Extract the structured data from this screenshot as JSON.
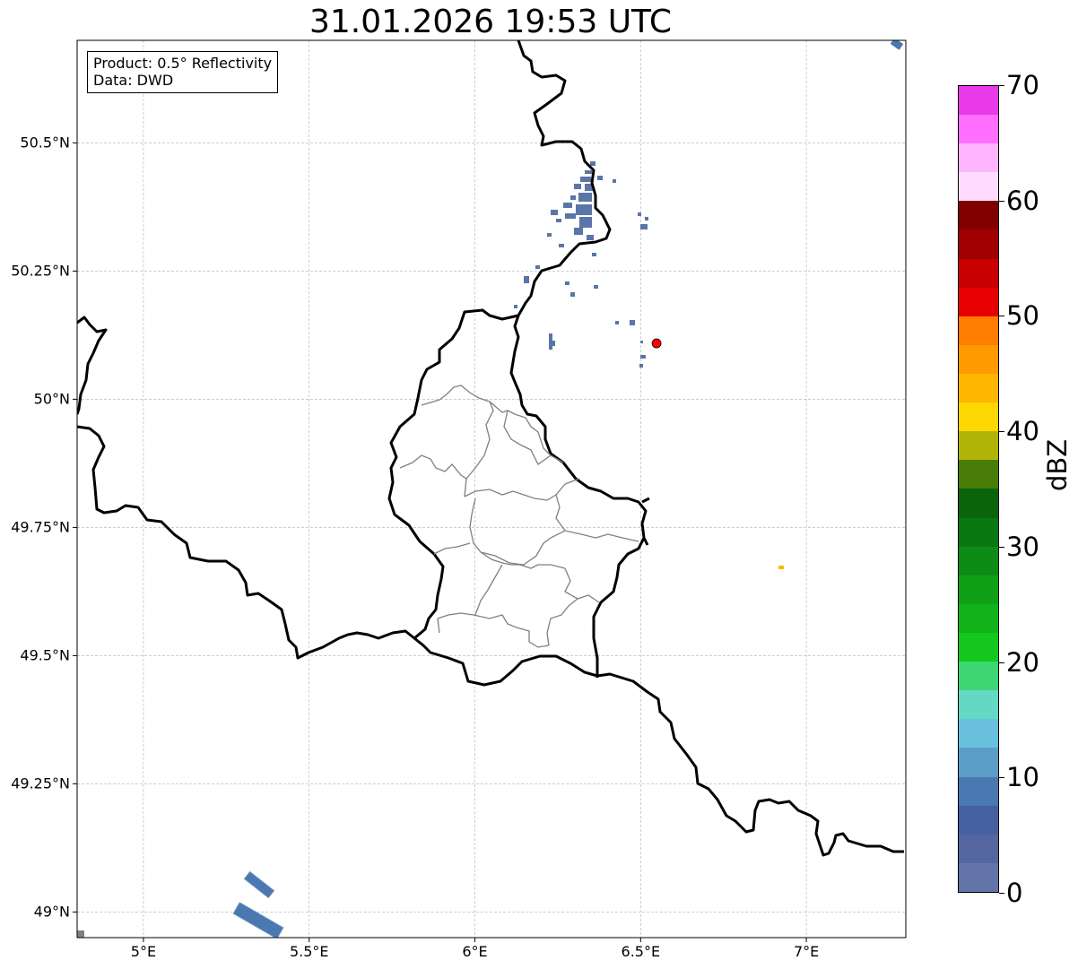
{
  "title": "31.01.2026 19:53 UTC",
  "info": {
    "product_line": "Product: 0.5° Reflectivity",
    "data_line": "Data: DWD"
  },
  "x_ticks": [
    {
      "label": "5°E",
      "lon": 5.0
    },
    {
      "label": "5.5°E",
      "lon": 5.5
    },
    {
      "label": "6°E",
      "lon": 6.0
    },
    {
      "label": "6.5°E",
      "lon": 6.5
    },
    {
      "label": "7°E",
      "lon": 7.0
    }
  ],
  "y_ticks": [
    {
      "label": "50.5°N",
      "lat": 50.5
    },
    {
      "label": "50.25°N",
      "lat": 50.25
    },
    {
      "label": "50°N",
      "lat": 50.0
    },
    {
      "label": "49.75°N",
      "lat": 49.75
    },
    {
      "label": "49.5°N",
      "lat": 49.5
    },
    {
      "label": "49.25°N",
      "lat": 49.25
    },
    {
      "label": "49°N",
      "lat": 49.0
    }
  ],
  "extent": {
    "lon_min": 4.8,
    "lon_max": 7.3,
    "lat_min": 48.95,
    "lat_max": 50.7
  },
  "radar_site": {
    "lon": 6.548,
    "lat": 50.109,
    "color": "#ff0000"
  },
  "colorbar": {
    "label": "dBZ",
    "min": 0,
    "max": 70,
    "ticks": [
      "0",
      "10",
      "20",
      "30",
      "40",
      "50",
      "60",
      "70"
    ],
    "colors": [
      "#6375a8",
      "#5466a0",
      "#4460a0",
      "#4a78b0",
      "#5a9ec8",
      "#68c0dc",
      "#64d8c4",
      "#3cd672",
      "#14c81e",
      "#10b41a",
      "#10a016",
      "#0c8c14",
      "#0a7810",
      "#0a640c",
      "#4a7c0a",
      "#b0b406",
      "#ffd700",
      "#ffb600",
      "#ff9a00",
      "#ff7d00",
      "#e60000",
      "#c80000",
      "#a00000",
      "#800000",
      "#ffdcff",
      "#ffb4ff",
      "#ff6eff",
      "#e83ae8"
    ]
  },
  "echo_colors": {
    "weak": "#5a75a8",
    "strip": "#4a78b0",
    "yellow": "#ffb600"
  }
}
